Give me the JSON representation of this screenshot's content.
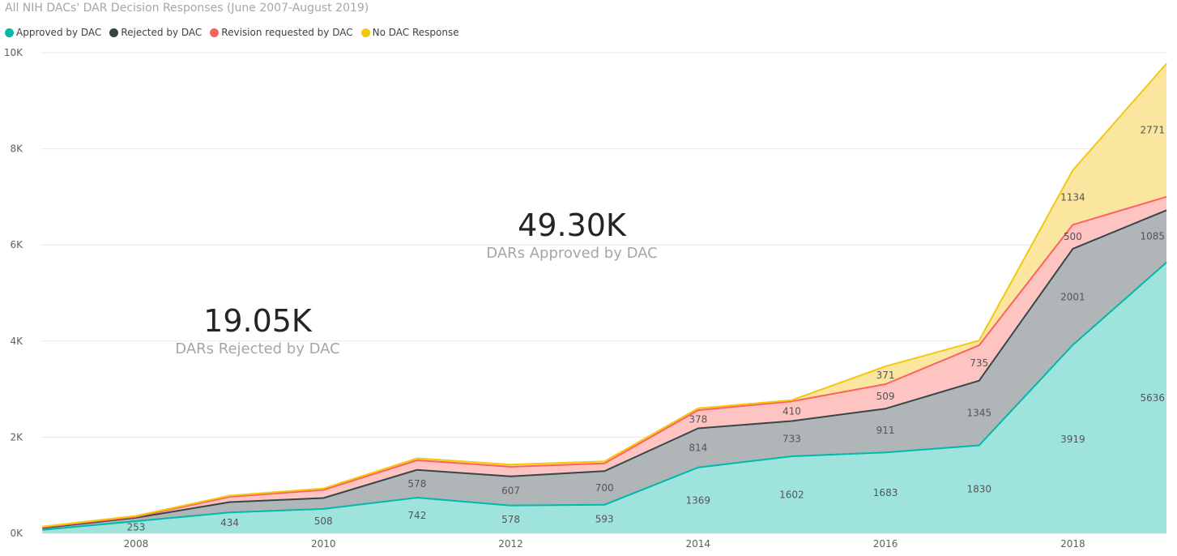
{
  "chart_data": {
    "type": "area",
    "stacked": true,
    "title": "All NIH DACs' DAR Decision Responses (June 2007-August 2019)",
    "x_tick_labels": [
      "2008",
      "2010",
      "2012",
      "2014",
      "2016",
      "2018"
    ],
    "y_tick_labels": [
      "0K",
      "2K",
      "4K",
      "6K",
      "8K",
      "10K"
    ],
    "ylim": [
      0,
      10000
    ],
    "grid": true,
    "legend_position": "top-left",
    "x": [
      2007,
      2008,
      2009,
      2010,
      2011,
      2012,
      2013,
      2014,
      2015,
      2016,
      2017,
      2018,
      2019
    ],
    "series": [
      {
        "name": "Approved by DAC",
        "color": "#01b8aa",
        "fill": "#9ee3dc",
        "values": [
          70,
          253,
          434,
          508,
          742,
          578,
          593,
          1369,
          1602,
          1683,
          1830,
          3919,
          5636
        ],
        "labels": [
          "",
          "253",
          "434",
          "508",
          "742",
          "578",
          "593",
          "1369",
          "1602",
          "1683",
          "1830",
          "3919",
          "5636"
        ]
      },
      {
        "name": "Rejected by DAC",
        "color": "#374649",
        "fill": "#b0b5b7",
        "values": [
          40,
          70,
          215,
          225,
          578,
          607,
          700,
          814,
          733,
          911,
          1345,
          2001,
          1085
        ],
        "labels": [
          "",
          "",
          "",
          "",
          "578",
          "607",
          "700",
          "814",
          "733",
          "911",
          "1345",
          "2001",
          "1085"
        ]
      },
      {
        "name": "Revision requested by DAC",
        "color": "#fd625e",
        "fill": "#fec4c2",
        "values": [
          15,
          20,
          110,
          170,
          200,
          200,
          160,
          378,
          410,
          509,
          735,
          500,
          280
        ],
        "labels": [
          "",
          "",
          "",
          "",
          "",
          "",
          "",
          "378",
          "410",
          "509",
          "735",
          "500",
          ""
        ]
      },
      {
        "name": "No DAC Response",
        "color": "#f2c80f",
        "fill": "#fbe6a0",
        "values": [
          15,
          20,
          25,
          30,
          40,
          45,
          45,
          40,
          25,
          371,
          100,
          1134,
          2771
        ],
        "labels": [
          "",
          "",
          "",
          "",
          "",
          "",
          "",
          "",
          "",
          "371",
          "",
          "1134",
          "2771"
        ]
      }
    ]
  },
  "cards": {
    "approved": {
      "value": "49.30K",
      "label": "DARs Approved by DAC"
    },
    "rejected": {
      "value": "19.05K",
      "label": "DARs Rejected by DAC"
    }
  }
}
